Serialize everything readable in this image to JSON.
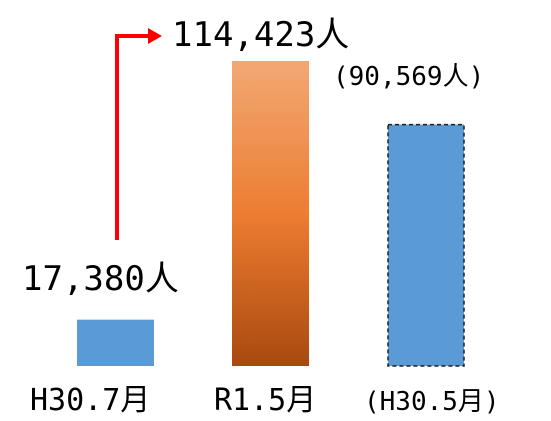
{
  "chart_data": {
    "type": "bar",
    "categories": [
      "H30.7月",
      "R1.5月",
      "(H30.5月)"
    ],
    "values": [
      17380,
      114423,
      90569
    ],
    "data_labels": [
      "17,380人",
      "114,423人",
      "(90,569人)"
    ],
    "ylim": [
      0,
      115000
    ],
    "grid": false,
    "title": "",
    "xlabel": "",
    "ylabel": "",
    "colors": {
      "bar_blue": "#5b9bd5",
      "bar_orange_top": "#f2a874",
      "bar_orange_mid": "#ed7d31",
      "bar_orange_bottom": "#a9490f",
      "arrow": "#ff0000",
      "dashed_border": "#1f1f1f"
    }
  }
}
